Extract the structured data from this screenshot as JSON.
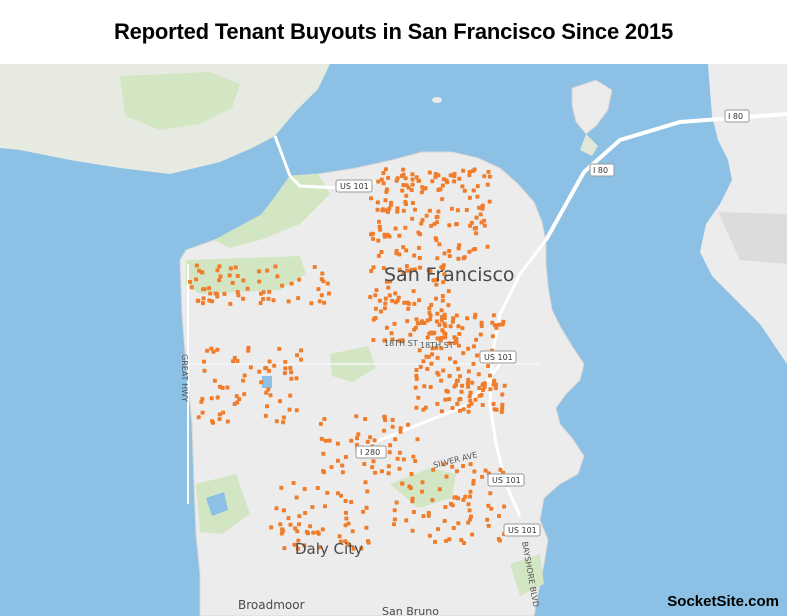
{
  "title": "Reported Tenant Buyouts in San Francisco Since 2015",
  "watermark": "SocketSite.com",
  "colors": {
    "water": "#8cc0e4",
    "land": "#ececec",
    "park": "#d3e6c4",
    "point": "#f07d2b"
  },
  "place_labels": {
    "san_francisco": "San Francisco",
    "daly_city": "Daly City",
    "broadmoor": "Broadmoor",
    "san_bruno": "San Bruno"
  },
  "street_labels": {
    "great_hwy": "GREAT HWY",
    "eighteenth_st": "18TH ST",
    "silver_ave": "SILVER AVE",
    "bayshore": "BAYSHORE BLVD"
  },
  "shields": {
    "us101_north": "US 101",
    "us101_mission": "US 101",
    "us101_south": "US 101",
    "us101_far_south": "US 101",
    "i280": "I 280",
    "i80_east": "I 80",
    "i80_bridge": "I 80"
  },
  "markers": {
    "type": "scatter",
    "count": 700,
    "series": "Reported Tenant Buyouts"
  }
}
